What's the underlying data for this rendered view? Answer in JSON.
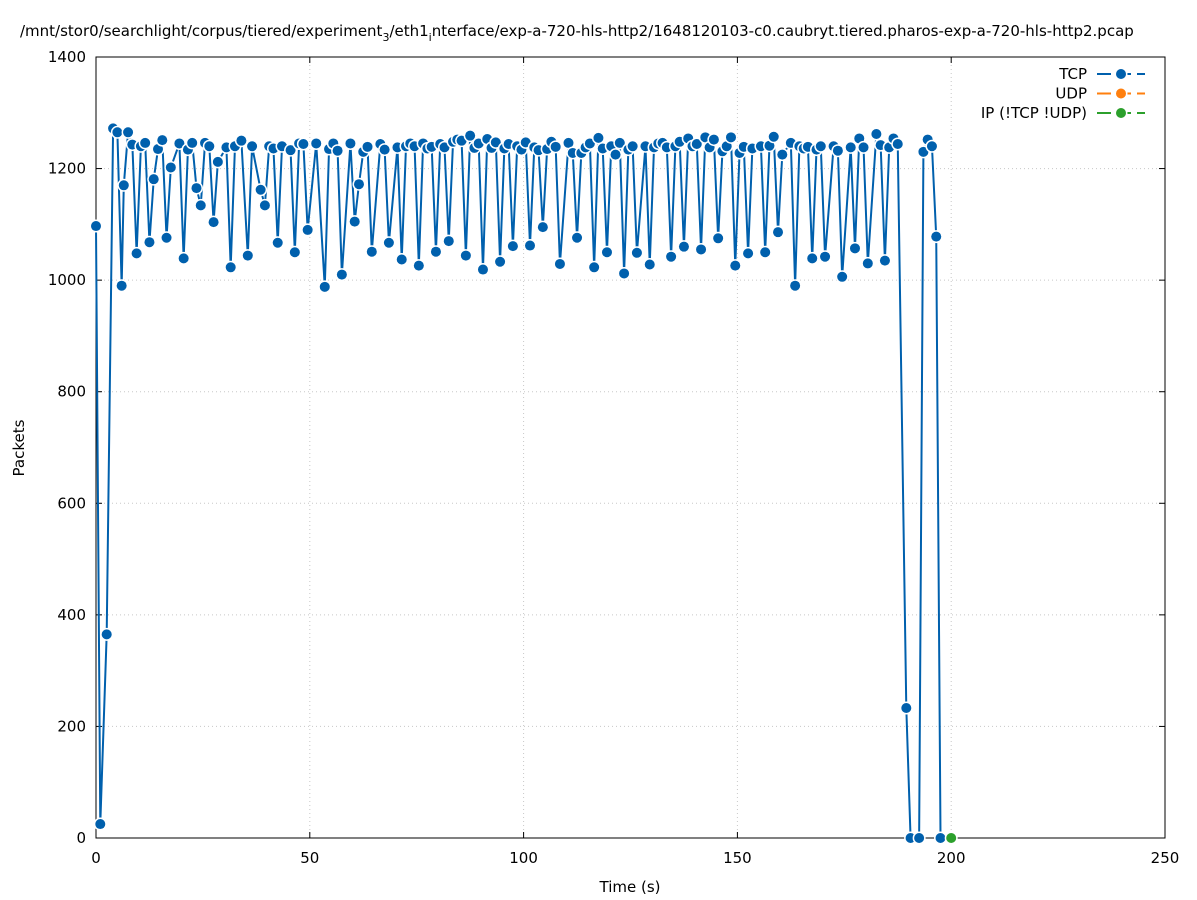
{
  "chart_data": {
    "type": "line",
    "title": "/mnt/stor0/searchlight/corpus/tiered/experiment",
    "title_sub": "3",
    "title_mid": "/eth1",
    "title_sub2": "i",
    "title_tail": "nterface/exp-a-720-hls-http2/1648120103-c0.caubryt.tiered.pharos-exp-a-720-hls-http2.pcap",
    "xlabel": "Time (s)",
    "ylabel": "Packets",
    "xlim": [
      0,
      250
    ],
    "ylim": [
      0,
      1400
    ],
    "xticks": [
      "0",
      "50",
      "100",
      "150",
      "200",
      "250"
    ],
    "yticks": [
      "0",
      "200",
      "400",
      "600",
      "800",
      "1000",
      "1200",
      "1400"
    ],
    "grid": true,
    "legend_position": "top-right",
    "series": [
      {
        "name": "TCP",
        "color": "#0060ad",
        "points": [
          [
            0,
            1097
          ],
          [
            1,
            25
          ],
          [
            2.5,
            365
          ],
          [
            4,
            1272
          ],
          [
            5,
            1265
          ],
          [
            6,
            990
          ],
          [
            6.5,
            1170
          ],
          [
            7.5,
            1265
          ],
          [
            8.5,
            1243
          ],
          [
            9.5,
            1048
          ],
          [
            10.5,
            1240
          ],
          [
            11.5,
            1246
          ],
          [
            12.5,
            1068
          ],
          [
            13.5,
            1181
          ],
          [
            14.5,
            1235
          ],
          [
            15.5,
            1251
          ],
          [
            16.5,
            1076
          ],
          [
            17.5,
            1202
          ],
          [
            19.5,
            1245
          ],
          [
            20.5,
            1039
          ],
          [
            21.5,
            1234
          ],
          [
            22.5,
            1246
          ],
          [
            23.5,
            1165
          ],
          [
            24.5,
            1134
          ],
          [
            25.5,
            1246
          ],
          [
            26.5,
            1240
          ],
          [
            27.5,
            1104
          ],
          [
            28.5,
            1212
          ],
          [
            30.5,
            1238
          ],
          [
            31.5,
            1023
          ],
          [
            32.5,
            1240
          ],
          [
            34,
            1250
          ],
          [
            35.5,
            1044
          ],
          [
            36.5,
            1240
          ],
          [
            38.5,
            1162
          ],
          [
            39.5,
            1134
          ],
          [
            40.5,
            1240
          ],
          [
            41.5,
            1236
          ],
          [
            42.5,
            1067
          ],
          [
            43.5,
            1240
          ],
          [
            45.5,
            1233
          ],
          [
            46.5,
            1050
          ],
          [
            47.5,
            1245
          ],
          [
            48.5,
            1244
          ],
          [
            49.5,
            1090
          ],
          [
            51.5,
            1245
          ],
          [
            53.5,
            988
          ],
          [
            54.5,
            1235
          ],
          [
            55.5,
            1245
          ],
          [
            56.5,
            1232
          ],
          [
            57.5,
            1010
          ],
          [
            59.5,
            1245
          ],
          [
            60.5,
            1105
          ],
          [
            61.5,
            1172
          ],
          [
            62.5,
            1230
          ],
          [
            63.5,
            1239
          ],
          [
            64.5,
            1051
          ],
          [
            66.5,
            1244
          ],
          [
            67.5,
            1234
          ],
          [
            68.5,
            1067
          ],
          [
            70.5,
            1238
          ],
          [
            71.5,
            1037
          ],
          [
            72.5,
            1240
          ],
          [
            73.5,
            1245
          ],
          [
            74.5,
            1240
          ],
          [
            75.5,
            1026
          ],
          [
            76.5,
            1245
          ],
          [
            77.5,
            1236
          ],
          [
            78.5,
            1239
          ],
          [
            79.5,
            1051
          ],
          [
            80.5,
            1244
          ],
          [
            81.5,
            1238
          ],
          [
            82.5,
            1070
          ],
          [
            83.5,
            1248
          ],
          [
            84.5,
            1252
          ],
          [
            85.5,
            1250
          ],
          [
            86.5,
            1044
          ],
          [
            87.5,
            1259
          ],
          [
            88.5,
            1237
          ],
          [
            89.5,
            1245
          ],
          [
            90.5,
            1019
          ],
          [
            91.5,
            1253
          ],
          [
            92.5,
            1237
          ],
          [
            93.5,
            1247
          ],
          [
            94.5,
            1033
          ],
          [
            95.5,
            1236
          ],
          [
            96.5,
            1244
          ],
          [
            97.5,
            1061
          ],
          [
            98.5,
            1240
          ],
          [
            99.5,
            1234
          ],
          [
            100.5,
            1247
          ],
          [
            101.5,
            1062
          ],
          [
            102.5,
            1238
          ],
          [
            103.5,
            1233
          ],
          [
            104.5,
            1095
          ],
          [
            105.5,
            1235
          ],
          [
            106.5,
            1248
          ],
          [
            107.5,
            1239
          ],
          [
            108.5,
            1029
          ],
          [
            110.5,
            1246
          ],
          [
            111.5,
            1228
          ],
          [
            112.5,
            1076
          ],
          [
            113.5,
            1228
          ],
          [
            114.5,
            1238
          ],
          [
            115.5,
            1245
          ],
          [
            116.5,
            1023
          ],
          [
            117.5,
            1255
          ],
          [
            118.5,
            1236
          ],
          [
            119.5,
            1050
          ],
          [
            120.5,
            1240
          ],
          [
            121.5,
            1225
          ],
          [
            122.5,
            1246
          ],
          [
            123.5,
            1012
          ],
          [
            124.5,
            1234
          ],
          [
            125.5,
            1240
          ],
          [
            126.5,
            1049
          ],
          [
            128.5,
            1240
          ],
          [
            129.5,
            1028
          ],
          [
            130.5,
            1238
          ],
          [
            131.5,
            1245
          ],
          [
            132.5,
            1246
          ],
          [
            133.5,
            1238
          ],
          [
            134.5,
            1042
          ],
          [
            135.5,
            1240
          ],
          [
            136.5,
            1248
          ],
          [
            137.5,
            1060
          ],
          [
            138.5,
            1254
          ],
          [
            139.5,
            1240
          ],
          [
            140.5,
            1244
          ],
          [
            141.5,
            1055
          ],
          [
            142.5,
            1256
          ],
          [
            143.5,
            1238
          ],
          [
            144.5,
            1252
          ],
          [
            145.5,
            1075
          ],
          [
            146.5,
            1231
          ],
          [
            147.5,
            1240
          ],
          [
            148.5,
            1256
          ],
          [
            149.5,
            1026
          ],
          [
            150.5,
            1228
          ],
          [
            151.5,
            1239
          ],
          [
            152.5,
            1048
          ],
          [
            153.5,
            1236
          ],
          [
            155.5,
            1240
          ],
          [
            156.5,
            1050
          ],
          [
            157.5,
            1241
          ],
          [
            158.5,
            1257
          ],
          [
            159.5,
            1086
          ],
          [
            160.5,
            1225
          ],
          [
            162.5,
            1246
          ],
          [
            163.5,
            990
          ],
          [
            164.5,
            1240
          ],
          [
            165.5,
            1236
          ],
          [
            166.5,
            1239
          ],
          [
            167.5,
            1039
          ],
          [
            168.5,
            1234
          ],
          [
            169.5,
            1240
          ],
          [
            170.5,
            1042
          ],
          [
            172.5,
            1240
          ],
          [
            173.5,
            1232
          ],
          [
            174.5,
            1006
          ],
          [
            176.5,
            1238
          ],
          [
            177.5,
            1057
          ],
          [
            178.5,
            1254
          ],
          [
            179.5,
            1238
          ],
          [
            180.5,
            1030
          ],
          [
            182.5,
            1262
          ],
          [
            183.5,
            1242
          ],
          [
            184.5,
            1035
          ],
          [
            185.5,
            1238
          ],
          [
            186.5,
            1254
          ],
          [
            187.5,
            1244
          ],
          [
            189.5,
            233
          ],
          [
            190.5,
            0
          ],
          [
            192.5,
            0
          ],
          [
            193.5,
            1230
          ],
          [
            194.5,
            1252
          ],
          [
            195.5,
            1240
          ],
          [
            196.5,
            1078
          ],
          [
            197.5,
            0
          ]
        ]
      },
      {
        "name": "UDP",
        "color": "#ff7f0e",
        "points": []
      },
      {
        "name": "IP (!TCP  !UDP)",
        "color": "#2ca02c",
        "points": [
          [
            200,
            0
          ]
        ]
      }
    ]
  }
}
